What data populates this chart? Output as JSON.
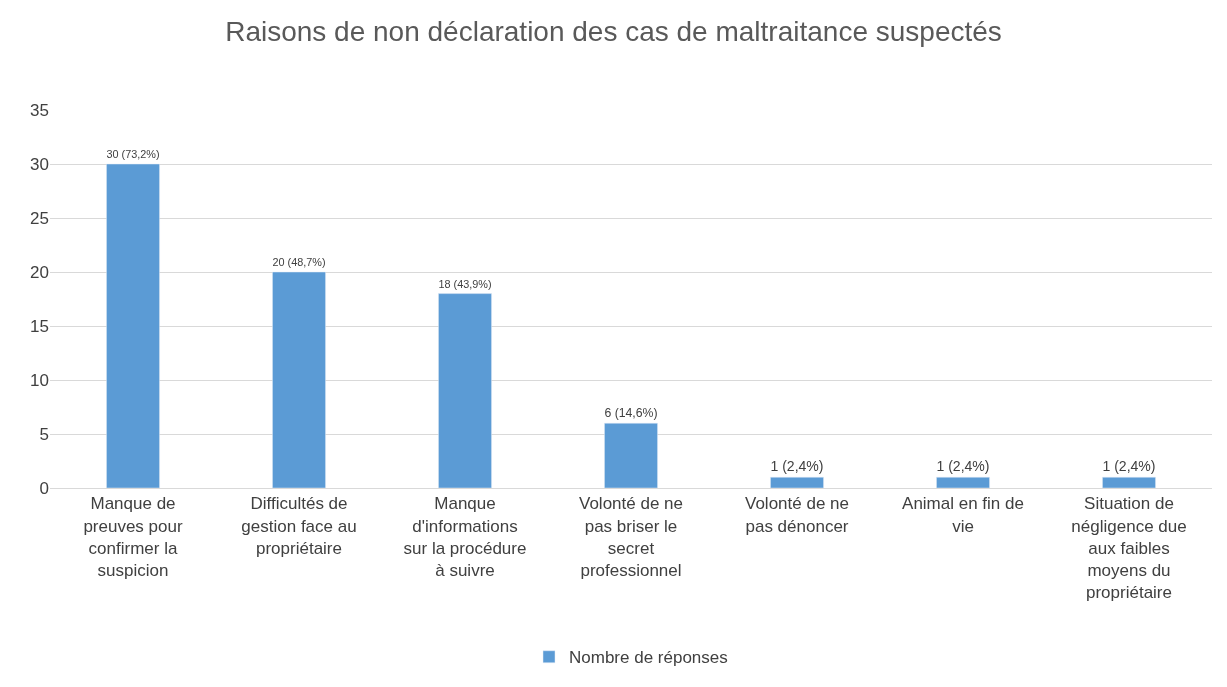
{
  "chart_data": {
    "type": "bar",
    "title": "Raisons de non déclaration des cas de maltraitance suspectés",
    "categories": [
      "Manque de preuves pour confirmer la suspicion",
      "Difficultés de gestion face au propriétaire",
      "Manque d'informations sur la procédure à suivre",
      "Volonté de ne pas briser le secret professionnel",
      "Volonté de ne pas dénoncer",
      "Animal en fin de vie",
      "Situation de négligence due aux faibles moyens du propriétaire"
    ],
    "series": [
      {
        "name": "Nombre de réponses",
        "color": "#5b9bd5",
        "values": [
          30,
          20,
          18,
          6,
          1,
          1,
          1
        ],
        "value_labels": [
          "30 (73,2%)",
          "20 (48,7%)",
          "18 (43,9%)",
          "6 (14,6%)",
          "1 (2,4%)",
          "1 (2,4%)",
          "1 (2,4%)"
        ]
      }
    ],
    "ylim": [
      0,
      35
    ],
    "yticks": [
      0,
      5,
      10,
      15,
      20,
      25,
      30,
      35
    ],
    "grid": "y",
    "legend": "bottom"
  }
}
